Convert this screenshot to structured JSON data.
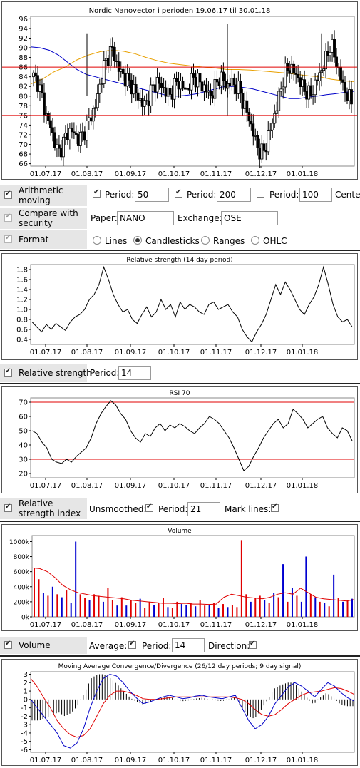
{
  "chart_data": [
    {
      "type": "candlestick",
      "title": "Nordic Nanovector i perioden 19.06.17 til 30.01.18",
      "x_ticks": [
        "01.07.17",
        "01.08.17",
        "01.09.17",
        "01.10.17",
        "01.11.17",
        "01.12.17",
        "01.01.18"
      ],
      "y_ticks": [
        66,
        68,
        70,
        72,
        74,
        76,
        78,
        80,
        82,
        84,
        86,
        88,
        90,
        92,
        94,
        96
      ],
      "ylim": [
        65.5,
        96.5
      ],
      "hlines": [
        86,
        76
      ],
      "close_path": [
        84,
        83,
        80,
        76,
        74,
        71,
        68,
        70,
        72,
        73,
        72,
        71,
        72,
        74,
        76,
        78,
        82,
        86,
        88,
        90,
        87,
        85,
        84,
        83,
        82,
        80,
        79,
        78,
        80,
        82,
        83,
        82,
        81,
        80,
        82,
        83,
        82,
        81,
        83,
        84,
        83,
        82,
        81,
        80,
        82,
        84,
        83,
        82,
        83,
        82,
        81,
        78,
        76,
        73,
        70,
        68,
        69,
        72,
        75,
        78,
        82,
        85,
        86,
        85,
        84,
        82,
        81,
        80,
        82,
        84,
        86,
        88,
        91,
        88,
        85,
        82,
        80,
        79
      ],
      "ma50_path": [
        90.2,
        90,
        89.5,
        88.5,
        87,
        85.5,
        84.5,
        84,
        83.5,
        83,
        82.5,
        82,
        81.5,
        81,
        80.5,
        80,
        80,
        80.2,
        80.5,
        81,
        81.5,
        82,
        82,
        81.8,
        81.5,
        81,
        80.5,
        80,
        79.5,
        79.5,
        79.8,
        80,
        80.3,
        80.5,
        80.8,
        81
      ],
      "ma200_path": [
        82.5,
        83.5,
        85,
        86,
        87.5,
        88.5,
        89.2,
        89.5,
        89.3,
        88.8,
        88,
        87.3,
        86.8,
        86.5,
        86.2,
        86,
        85.8,
        85.5,
        85.5,
        85.4,
        85.2,
        85,
        84.8,
        84.5,
        84.2,
        84,
        83.5,
        83.2,
        83
      ]
    },
    {
      "type": "line",
      "title": "Relative strength (14 day period)",
      "x_ticks": [
        "01.07.17",
        "01.08.17",
        "01.09.17",
        "01.10.17",
        "01.11.17",
        "01.12.17",
        "01.01.18"
      ],
      "y_ticks": [
        0.4,
        0.6,
        0.8,
        1.0,
        1.2,
        1.4,
        1.6,
        1.8
      ],
      "ylim": [
        0.3,
        1.9
      ],
      "values": [
        0.75,
        0.65,
        0.55,
        0.7,
        0.6,
        0.72,
        0.65,
        0.58,
        0.75,
        0.85,
        0.9,
        1.0,
        1.2,
        1.3,
        1.5,
        1.85,
        1.6,
        1.3,
        1.1,
        0.95,
        1.0,
        0.8,
        0.72,
        0.9,
        1.05,
        0.85,
        0.95,
        1.2,
        1.0,
        1.1,
        0.85,
        1.15,
        1.0,
        1.1,
        1.05,
        0.95,
        0.9,
        1.1,
        1.15,
        1.0,
        1.05,
        1.1,
        0.95,
        0.85,
        0.6,
        0.45,
        0.35,
        0.55,
        0.7,
        0.9,
        1.2,
        1.5,
        1.3,
        1.55,
        1.4,
        1.2,
        1.0,
        0.9,
        1.1,
        1.25,
        1.5,
        1.85,
        1.5,
        1.1,
        0.85,
        0.75,
        0.8,
        0.65
      ]
    },
    {
      "type": "line",
      "title": "RSI 70",
      "x_ticks": [
        "01.07.17",
        "01.08.17",
        "01.09.17",
        "01.10.17",
        "01.11.17",
        "01.12.17",
        "01.01.18"
      ],
      "y_ticks": [
        20,
        30,
        40,
        50,
        60,
        70
      ],
      "ylim": [
        17,
        73
      ],
      "hlines": [
        70,
        30
      ],
      "values": [
        50,
        48,
        42,
        38,
        30,
        28,
        27,
        30,
        28,
        32,
        35,
        38,
        45,
        55,
        62,
        67,
        71,
        68,
        62,
        58,
        50,
        45,
        42,
        48,
        46,
        52,
        55,
        50,
        54,
        52,
        55,
        53,
        50,
        48,
        52,
        55,
        60,
        58,
        55,
        50,
        45,
        38,
        30,
        22,
        25,
        32,
        38,
        45,
        50,
        55,
        58,
        52,
        55,
        65,
        62,
        58,
        52,
        55,
        58,
        60,
        52,
        48,
        45,
        52,
        50,
        43
      ]
    },
    {
      "type": "bar",
      "title": "Volume",
      "x_ticks": [
        "01.07.17",
        "01.08.17",
        "01.09.17",
        "01.10.17",
        "01.11.17",
        "01.12.17",
        "01.01.18"
      ],
      "y_ticks": [
        "0k",
        "200k",
        "400k",
        "600k",
        "800k",
        "1000k"
      ],
      "ylim": [
        0,
        1080
      ],
      "volumes_k": [
        650,
        500,
        320,
        280,
        400,
        300,
        260,
        350,
        180,
        1000,
        300,
        250,
        220,
        300,
        280,
        200,
        380,
        220,
        150,
        260,
        150,
        220,
        180,
        240,
        120,
        200,
        160,
        180,
        250,
        130,
        120,
        200,
        170,
        160,
        180,
        140,
        220,
        150,
        160,
        180,
        120,
        170,
        130,
        160,
        130,
        1020,
        300,
        200,
        250,
        280,
        220,
        180,
        320,
        260,
        700,
        200,
        380,
        280,
        200,
        800,
        300,
        260,
        200,
        180,
        140,
        560,
        250,
        200,
        220,
        240
      ],
      "volume_colors": [
        "red",
        "red",
        "blue",
        "red",
        "blue",
        "red",
        "blue",
        "red",
        "blue",
        "blue",
        "red",
        "red",
        "blue",
        "red",
        "red",
        "blue",
        "red",
        "red",
        "blue",
        "red",
        "blue",
        "red",
        "red",
        "blue",
        "red",
        "red",
        "blue",
        "red",
        "red",
        "blue",
        "red",
        "red",
        "blue",
        "blue",
        "red",
        "blue",
        "red",
        "red",
        "blue",
        "red",
        "blue",
        "red",
        "blue",
        "red",
        "red",
        "red",
        "red",
        "blue",
        "red",
        "red",
        "blue",
        "red",
        "blue",
        "red",
        "blue",
        "red",
        "blue",
        "red",
        "blue",
        "blue",
        "red",
        "blue",
        "red",
        "blue",
        "red",
        "blue",
        "red",
        "blue",
        "red",
        "blue"
      ],
      "avg14_path_k": [
        650,
        640,
        600,
        520,
        420,
        360,
        320,
        300,
        280,
        270,
        260,
        250,
        240,
        220,
        210,
        200,
        190,
        180,
        180,
        175,
        180,
        170,
        170,
        165,
        170,
        260,
        300,
        280,
        260,
        250,
        240,
        260,
        300,
        320,
        300,
        380,
        320,
        260,
        240,
        230,
        220,
        210,
        230
      ]
    },
    {
      "type": "line",
      "title": "Moving Average Convergence/Divergence (26/12 day periods; 9 day signal)",
      "x_ticks": [
        "01.07.17",
        "01.08.17",
        "01.09.17",
        "01.10.17",
        "01.11.17",
        "01.12.17",
        "01.01.18"
      ],
      "y_ticks": [
        3,
        2,
        1,
        0,
        -1,
        -2,
        -3,
        -4,
        -5,
        -6
      ],
      "ylim": [
        -6.3,
        3.3
      ],
      "macd": [
        0,
        -1,
        -2,
        -3,
        -4,
        -5.5,
        -5.8,
        -5.2,
        -3.5,
        -1,
        1,
        2.5,
        3,
        2.8,
        2,
        1,
        0.2,
        -0.5,
        -0.3,
        0,
        0.3,
        0.5,
        0.3,
        0.1,
        0.2,
        0.4,
        0.5,
        0.3,
        0.2,
        0.1,
        0.3,
        0.5,
        -1,
        -2.5,
        -3.5,
        -3,
        -2,
        -0.5,
        0.5,
        1.5,
        2,
        1.6,
        1,
        0.3,
        1.2,
        2,
        1.6,
        0.8,
        0.2,
        -0.2
      ],
      "signal": [
        2.5,
        1.5,
        0.2,
        -1,
        -2.5,
        -3.5,
        -4.2,
        -4.5,
        -4.3,
        -3.5,
        -2,
        -0.5,
        0.5,
        1,
        1,
        0.8,
        0.5,
        0.1,
        0,
        0,
        0.1,
        0.2,
        0.3,
        0.3,
        0.3,
        0.3,
        0.3,
        0.3,
        0.3,
        0.3,
        0.3,
        0.2,
        0,
        -0.5,
        -1.2,
        -1.8,
        -2,
        -1.8,
        -1.2,
        -0.5,
        0,
        0.5,
        0.8,
        0.9,
        1,
        1.2,
        1.4,
        1.3,
        1,
        0.6
      ]
    }
  ],
  "controls": {
    "ama": {
      "label": "Arithmetic moving average",
      "period_label": "Period:",
      "p1": "50",
      "p2": "200",
      "p3": "100",
      "center_label": "Center"
    },
    "compare": {
      "label": "Compare with security",
      "paper_label": "Paper:",
      "paper": "NANO",
      "exchange_label": "Exchange:",
      "exchange": "OSE"
    },
    "format": {
      "label": "Format",
      "opts": [
        "Lines",
        "Candlesticks",
        "Ranges",
        "OHLC"
      ]
    },
    "rs": {
      "label": "Relative strength",
      "period_label": "Period:",
      "period": "14"
    },
    "rsi": {
      "label": "Relative strength index",
      "unsmoothed_label": "Unsmoothed:",
      "period_label": "Period:",
      "period": "21",
      "mark_label": "Mark lines:"
    },
    "volume": {
      "label": "Volume",
      "average_label": "Average:",
      "period_label": "Period:",
      "period": "14",
      "direction_label": "Direction:"
    }
  },
  "colors": {
    "red_line": "#e00000",
    "ma50": "#0000c8",
    "ma200": "#e8a000",
    "vol_red": "#e00000",
    "vol_blue": "#0000d0"
  }
}
